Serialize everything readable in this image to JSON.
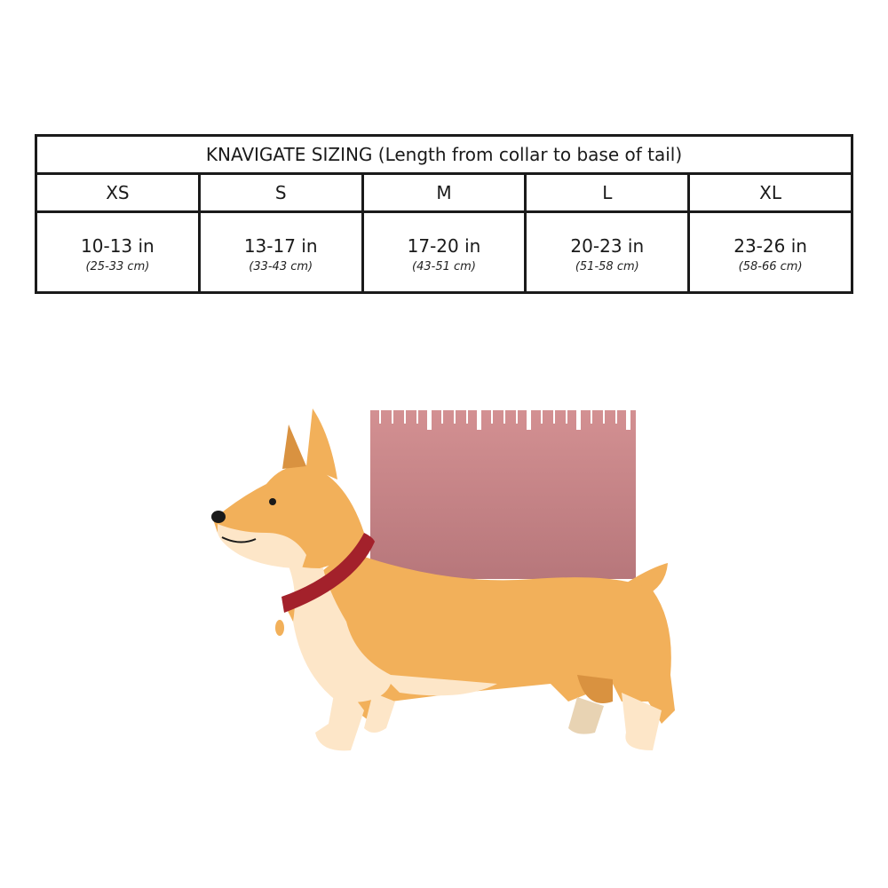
{
  "table": {
    "title": "KNAVIGATE SIZING (Length from collar to base of tail)",
    "sizes": [
      {
        "label": "XS",
        "inches": "10-13 in",
        "cm": "(25-33 cm)"
      },
      {
        "label": "S",
        "inches": "13-17 in",
        "cm": "(33-43 cm)"
      },
      {
        "label": "M",
        "inches": "17-20 in",
        "cm": "(43-51 cm)"
      },
      {
        "label": "L",
        "inches": "20-23 in",
        "cm": "(51-58 cm)"
      },
      {
        "label": "XL",
        "inches": "23-26 in",
        "cm": "(58-66 cm)"
      }
    ]
  },
  "illustration": {
    "subject": "corgi-with-ruler",
    "colors": {
      "fur": "#f2b05a",
      "cream": "#fde6c8",
      "collar": "#a3212b",
      "ruler_top": "#d39092",
      "ruler_bottom": "#b7777b"
    }
  }
}
